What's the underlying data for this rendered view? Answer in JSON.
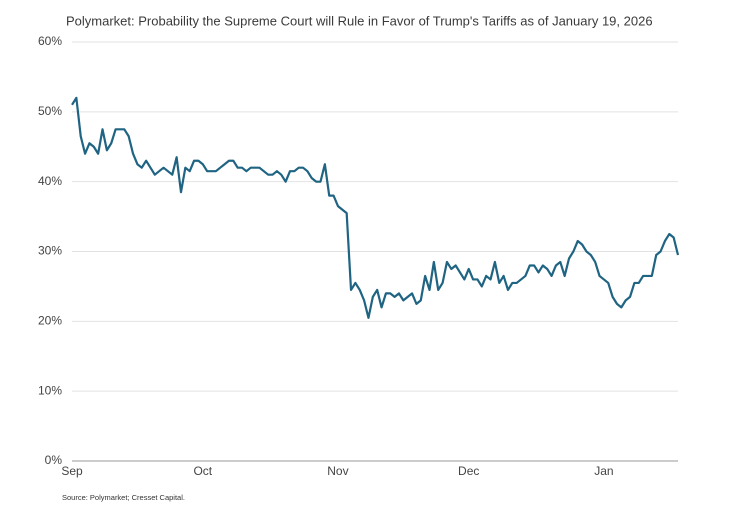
{
  "chart_data": {
    "type": "line",
    "title": "Polymarket: Probability the Supreme Court will Rule in Favor of Trump's Tariffs as of January 19, 2026",
    "source": "Source: Polymarket; Cresset Capital.",
    "categories": [
      "Sep",
      null,
      null,
      null,
      null,
      null,
      null,
      null,
      null,
      null,
      null,
      null,
      null,
      null,
      null,
      null,
      null,
      null,
      null,
      null,
      null,
      null,
      null,
      null,
      null,
      null,
      null,
      null,
      null,
      null,
      "Oct",
      null,
      null,
      null,
      null,
      null,
      null,
      null,
      null,
      null,
      null,
      null,
      null,
      null,
      null,
      null,
      null,
      null,
      null,
      null,
      null,
      null,
      null,
      null,
      null,
      null,
      null,
      null,
      null,
      null,
      null,
      "Nov",
      null,
      null,
      null,
      null,
      null,
      null,
      null,
      null,
      null,
      null,
      null,
      null,
      null,
      null,
      null,
      null,
      null,
      null,
      null,
      null,
      null,
      null,
      null,
      null,
      null,
      null,
      null,
      null,
      null,
      "Dec",
      null,
      null,
      null,
      null,
      null,
      null,
      null,
      null,
      null,
      null,
      null,
      null,
      null,
      null,
      null,
      null,
      null,
      null,
      null,
      null,
      null,
      null,
      null,
      null,
      null,
      null,
      null,
      null,
      null,
      null,
      "Jan",
      null,
      null,
      null,
      null,
      null,
      null,
      null,
      null,
      null,
      null,
      null,
      null,
      null,
      null,
      null,
      null,
      null
    ],
    "series": [
      {
        "color": "#1f6482",
        "values": [
          51,
          52,
          46.5,
          44,
          45.5,
          45,
          44,
          47.5,
          44.5,
          45.5,
          47.5,
          47.5,
          47.5,
          46.5,
          44,
          42.5,
          42,
          43,
          42,
          41,
          41.5,
          42,
          41.5,
          41,
          43.5,
          38.5,
          42,
          41.5,
          43,
          43,
          42.5,
          41.5,
          41.5,
          41.5,
          42,
          42.5,
          43,
          43,
          42,
          42,
          41.5,
          42,
          42,
          42,
          41.5,
          41,
          41,
          41.5,
          41,
          40,
          41.5,
          41.5,
          42,
          42,
          41.5,
          40.5,
          40,
          40,
          42.5,
          38,
          38,
          36.5,
          36,
          35.5,
          24.5,
          25.5,
          24.5,
          23,
          20.5,
          23.5,
          24.5,
          22,
          24,
          24,
          23.5,
          24,
          23,
          23.5,
          24,
          22.5,
          23,
          26.5,
          24.5,
          28.5,
          24.5,
          25.5,
          28.5,
          27.5,
          28,
          27,
          26,
          27.5,
          26,
          26,
          25,
          26.5,
          26,
          28.5,
          25.5,
          26.5,
          24.5,
          25.5,
          25.5,
          26,
          26.5,
          28,
          28,
          27,
          28,
          27.5,
          26.5,
          28,
          28.5,
          26.5,
          29,
          30,
          31.5,
          31,
          30,
          29.5,
          28.5,
          26.5,
          26,
          25.5,
          23.5,
          22.5,
          22,
          23,
          23.5,
          25.5,
          25.5,
          26.5,
          26.5,
          26.5,
          29.5,
          30,
          31.5,
          32.5,
          32,
          29.5
        ]
      }
    ],
    "ylim": [
      0,
      60
    ],
    "yticks": [
      {
        "value": 0,
        "label": "0%"
      },
      {
        "value": 10,
        "label": "10%"
      },
      {
        "value": 20,
        "label": "20%"
      },
      {
        "value": 30,
        "label": "30%"
      },
      {
        "value": 40,
        "label": "40%"
      },
      {
        "value": 50,
        "label": "50%"
      },
      {
        "value": 60,
        "label": "60%"
      }
    ],
    "grid": true
  }
}
